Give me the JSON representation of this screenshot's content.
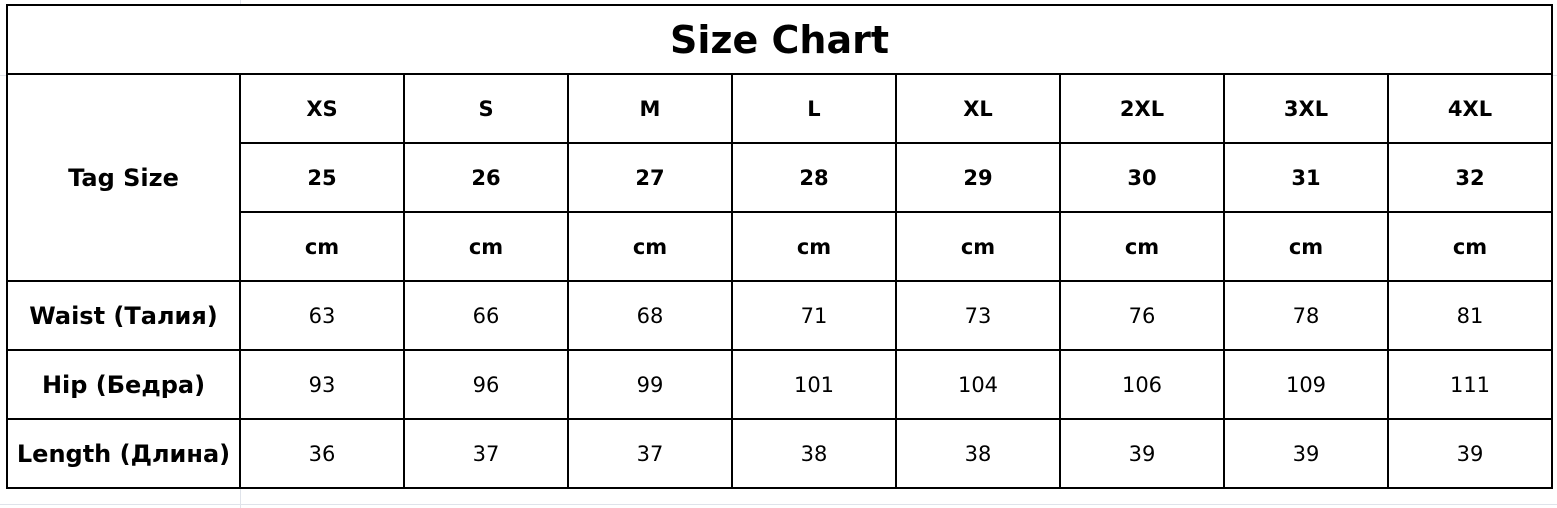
{
  "title": "Size Chart",
  "tag_size_label": "Tag Size",
  "sizes": [
    "XS",
    "S",
    "M",
    "L",
    "XL",
    "2XL",
    "3XL",
    "4XL"
  ],
  "tag_numbers": [
    "25",
    "26",
    "27",
    "28",
    "29",
    "30",
    "31",
    "32"
  ],
  "unit": "cm",
  "rows": [
    {
      "label": "Waist (Талия)",
      "values": [
        "63",
        "66",
        "68",
        "71",
        "73",
        "76",
        "78",
        "81"
      ]
    },
    {
      "label": "Hip (Бедра)",
      "values": [
        "93",
        "96",
        "99",
        "101",
        "104",
        "106",
        "109",
        "111"
      ]
    },
    {
      "label": "Length (Длина)",
      "values": [
        "36",
        "37",
        "37",
        "38",
        "38",
        "39",
        "39",
        "39"
      ]
    }
  ]
}
